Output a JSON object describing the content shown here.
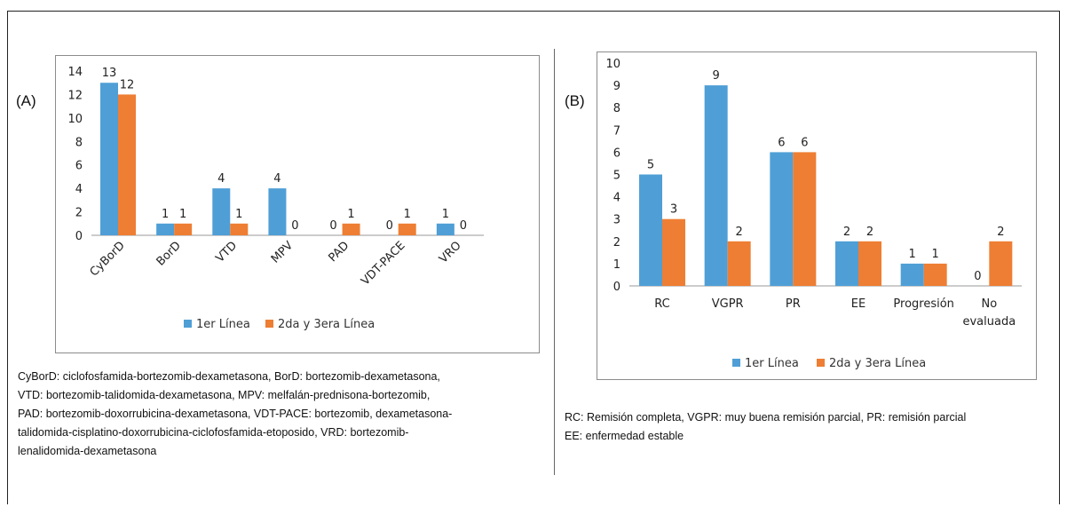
{
  "panels": {
    "a": {
      "label": "(A)",
      "caption_lines": [
        "CyBorD: ciclofosfamida-bortezomib-dexametasona, BorD: bortezomib-dexametasona,",
        "VTD: bortezomib-talidomida-dexametasona, MPV: melfalán-prednisona-bortezomib,",
        "PAD: bortezomib-doxorrubicina-dexametasona, VDT-PACE: bortezomib, dexametasona-",
        "talidomida-cisplatino-doxorrubicina-ciclofosfamida-etoposido, VRD: bortezomib-",
        "lenalidomida-dexametasona"
      ]
    },
    "b": {
      "label": "(B)",
      "caption_lines": [
        "RC: Remisión completa, VGPR: muy buena remisión parcial, PR: remisión parcial",
        "EE: enfermedad estable"
      ]
    }
  },
  "colors": {
    "series1": "#4f9fd6",
    "series2": "#ee7e33",
    "axis": "#999999"
  },
  "chart_data": [
    {
      "type": "bar",
      "categories": [
        "CyBorD",
        "BorD",
        "VTD",
        "MPV",
        "PAD",
        "VDT-PACE",
        "VRO"
      ],
      "series": [
        {
          "name": "1er Línea",
          "values": [
            13,
            1,
            4,
            4,
            0,
            0,
            1
          ]
        },
        {
          "name": "2da y 3era Línea",
          "values": [
            12,
            1,
            1,
            0,
            1,
            1,
            0
          ]
        }
      ],
      "ylim": [
        0,
        14
      ],
      "yticks": [
        "0",
        "2",
        "4",
        "6",
        "8",
        "10",
        "12",
        "14"
      ],
      "grid": false,
      "legend": "bottom"
    },
    {
      "type": "bar",
      "categories": [
        "RC",
        "VGPR",
        "PR",
        "EE",
        "Progresión",
        "No evaluada"
      ],
      "series": [
        {
          "name": "1er Línea",
          "values": [
            5,
            9,
            6,
            2,
            1,
            0
          ]
        },
        {
          "name": "2da y 3era Línea",
          "values": [
            3,
            2,
            6,
            2,
            1,
            2
          ]
        }
      ],
      "ylim": [
        0,
        10
      ],
      "yticks": [
        "0",
        "1",
        "2",
        "3",
        "4",
        "5",
        "6",
        "7",
        "8",
        "9",
        "10"
      ],
      "grid": false,
      "legend": "bottom"
    }
  ]
}
